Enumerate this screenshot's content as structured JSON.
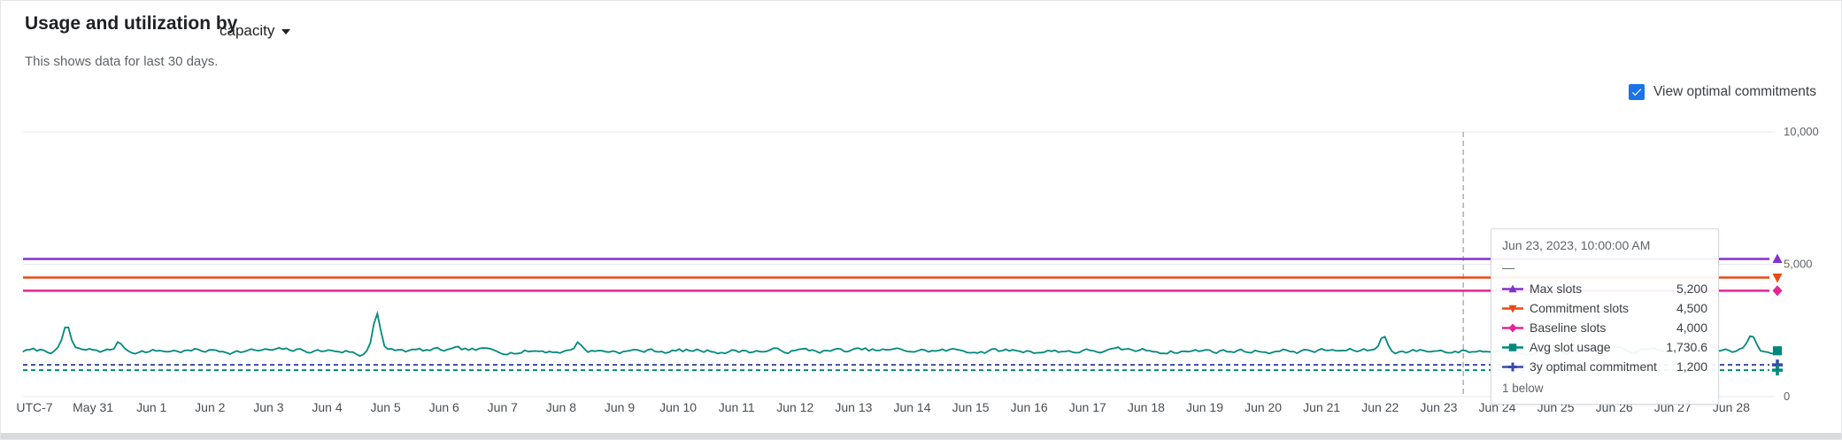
{
  "header": {
    "title": "Usage and utilization by",
    "dropdown_value": "capacity",
    "subtitle": "This shows data for last 30 days."
  },
  "controls": {
    "view_optimal_label": "View optimal commitments",
    "checked": true,
    "accent_color": "#1a73e8"
  },
  "chart_data": {
    "type": "line",
    "x_labels": [
      "UTC-7",
      "May 31",
      "Jun 1",
      "Jun 2",
      "Jun 3",
      "Jun 4",
      "Jun 5",
      "Jun 6",
      "Jun 7",
      "Jun 8",
      "Jun 9",
      "Jun 10",
      "Jun 11",
      "Jun 12",
      "Jun 13",
      "Jun 14",
      "Jun 15",
      "Jun 16",
      "Jun 17",
      "Jun 18",
      "Jun 19",
      "Jun 20",
      "Jun 21",
      "Jun 22",
      "Jun 23",
      "Jun 24",
      "Jun 25",
      "Jun 26",
      "Jun 27",
      "Jun 28"
    ],
    "ylim": [
      0,
      10000
    ],
    "y_ticks": [
      {
        "value": 0,
        "label": "0"
      },
      {
        "value": 5000,
        "label": "5,000"
      },
      {
        "value": 10000,
        "label": "10,000"
      }
    ],
    "series": [
      {
        "name": "Max slots",
        "type": "constant",
        "value": 5200,
        "color": "#8430ce",
        "marker": "triangle-up",
        "dashed": false
      },
      {
        "name": "Commitment slots",
        "type": "constant",
        "value": 4500,
        "color": "#e64a19",
        "marker": "triangle-down",
        "dashed": false
      },
      {
        "name": "Baseline slots",
        "type": "constant",
        "value": 4000,
        "color": "#e52592",
        "marker": "diamond",
        "dashed": false
      },
      {
        "name": "Avg slot usage",
        "type": "noisy",
        "value": 1730.6,
        "color": "#00897b",
        "marker": "square",
        "dashed": false,
        "spikes": [
          {
            "day": 0.55,
            "peak": 2680
          },
          {
            "day": 1.45,
            "peak": 2050
          },
          {
            "day": 5.55,
            "peak": 1520
          },
          {
            "day": 5.85,
            "peak": 3230
          },
          {
            "day": 9.3,
            "peak": 2050
          },
          {
            "day": 23.05,
            "peak": 2300
          },
          {
            "day": 28.6,
            "peak": 2050
          },
          {
            "day": 29.35,
            "peak": 2300
          }
        ]
      },
      {
        "name": "3y optimal commitment",
        "type": "constant",
        "value": 1200,
        "color": "#3949ab",
        "marker": "plus",
        "dashed": true
      }
    ],
    "unnamed_dashed_line": {
      "value": 1000,
      "color": "#00897b",
      "marker": "plus",
      "dashed": true
    },
    "hover": {
      "x_label": "Jun 23",
      "day_fraction": 0.42
    },
    "tooltip": {
      "title": "Jun 23, 2023, 10:00:00 AM",
      "empty_row": "—",
      "rows": [
        {
          "label": "Max slots",
          "value": "5,200",
          "color": "#8430ce",
          "marker": "triangle-up"
        },
        {
          "label": "Commitment slots",
          "value": "4,500",
          "color": "#e64a19",
          "marker": "triangle-down"
        },
        {
          "label": "Baseline slots",
          "value": "4,000",
          "color": "#e52592",
          "marker": "diamond"
        },
        {
          "label": "Avg slot usage",
          "value": "1,730.6",
          "color": "#00897b",
          "marker": "square"
        },
        {
          "label": "3y optimal commitment",
          "value": "1,200",
          "color": "#3949ab",
          "marker": "plus"
        }
      ],
      "footer": "1 below"
    }
  }
}
